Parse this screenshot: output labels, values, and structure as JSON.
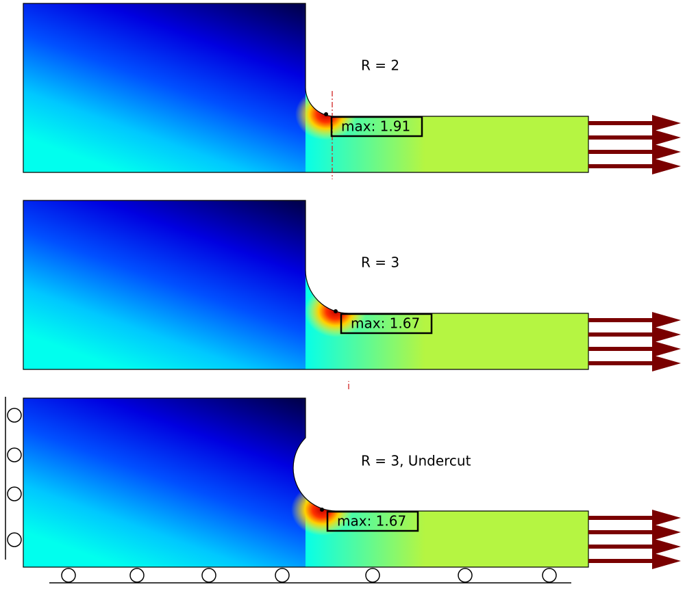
{
  "panels": [
    {
      "label": "R = 2",
      "max": "max: 1.91"
    },
    {
      "label": "R = 3",
      "max": "max: 1.67"
    },
    {
      "label": "R = 3, Undercut",
      "max": "max: 1.67"
    }
  ]
}
